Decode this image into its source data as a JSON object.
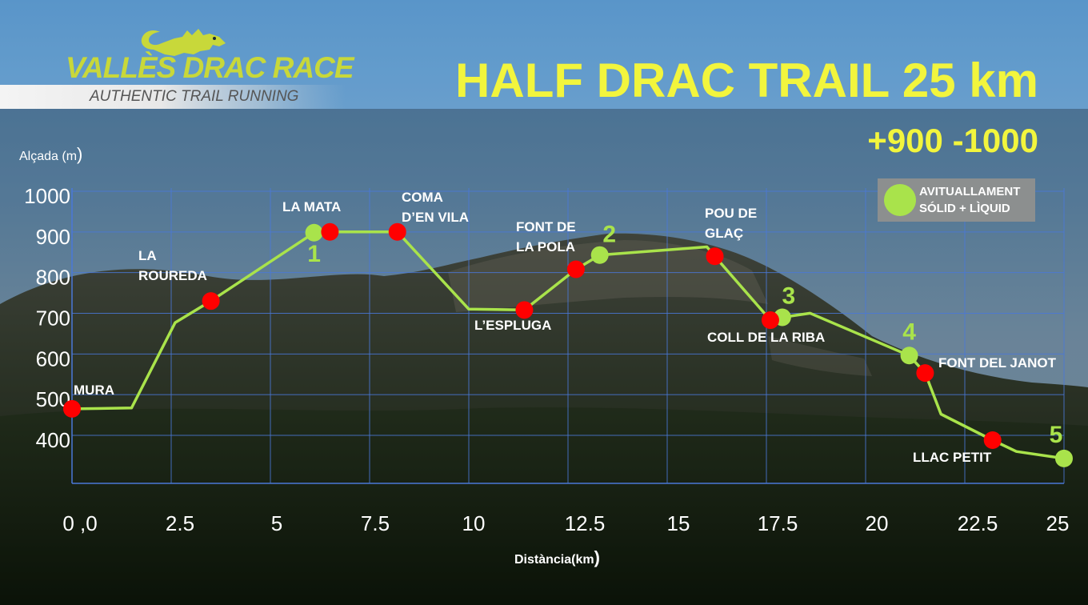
{
  "brand": {
    "name": "VALLÈS DRAC RACE",
    "tagline": "AUTHENTIC TRAIL RUNNING"
  },
  "race": {
    "title": "HALF DRAC TRAIL 25 km",
    "elevation": "+900  -1000"
  },
  "legend": {
    "label_line1": "AVITUALLAMENT",
    "label_line2": "SÓLID + LÌQUID"
  },
  "colors": {
    "accent": "#f2f53d",
    "profile_line": "#a9e34b",
    "aid_station": "#a9e34b",
    "waypoint": "#ff0000",
    "grid": "#4a78d8"
  },
  "chart_data": {
    "type": "line",
    "title": "HALF DRAC TRAIL 25 km",
    "ylabel": "Alçada (m",
    "ylabel_paren": ")",
    "xlabel": "Distància(km",
    "xlabel_paren": ")",
    "xlim": [
      0,
      25
    ],
    "ylim": [
      330,
      1000
    ],
    "x_ticks": [
      "0 ,0",
      "2.5",
      "5",
      "7.5",
      "10",
      "12.5",
      "15",
      "17.5",
      "20",
      "22.5",
      "25"
    ],
    "y_ticks": [
      "1000",
      "900",
      "800",
      "700",
      "600",
      "500",
      "400"
    ],
    "profile": [
      {
        "x": 0,
        "y": 477
      },
      {
        "x": 1.5,
        "y": 479
      },
      {
        "x": 2.6,
        "y": 689
      },
      {
        "x": 3.5,
        "y": 742
      },
      {
        "x": 6.1,
        "y": 910
      },
      {
        "x": 6.5,
        "y": 912
      },
      {
        "x": 8.2,
        "y": 912
      },
      {
        "x": 10.0,
        "y": 722
      },
      {
        "x": 11.4,
        "y": 720
      },
      {
        "x": 12.7,
        "y": 820
      },
      {
        "x": 13.3,
        "y": 855
      },
      {
        "x": 16.0,
        "y": 875
      },
      {
        "x": 16.2,
        "y": 852
      },
      {
        "x": 17.6,
        "y": 695
      },
      {
        "x": 17.9,
        "y": 702
      },
      {
        "x": 18.6,
        "y": 712
      },
      {
        "x": 21.1,
        "y": 608
      },
      {
        "x": 21.5,
        "y": 565
      },
      {
        "x": 21.9,
        "y": 464
      },
      {
        "x": 23.2,
        "y": 400
      },
      {
        "x": 23.8,
        "y": 372
      },
      {
        "x": 25,
        "y": 355
      }
    ],
    "waypoints": [
      {
        "name": "MURA",
        "x": 0,
        "y": 477
      },
      {
        "name": "LA ROUREDA",
        "x": 3.5,
        "y": 742
      },
      {
        "name": "LA MATA",
        "x": 6.5,
        "y": 912
      },
      {
        "name": "COMA D’EN VILA",
        "x": 8.2,
        "y": 912
      },
      {
        "name": "L’ESPLUGA",
        "x": 11.4,
        "y": 720
      },
      {
        "name": "FONT DE LA POLA",
        "x": 12.7,
        "y": 820
      },
      {
        "name": "POU DE GLAÇ",
        "x": 16.2,
        "y": 852
      },
      {
        "name": "COLL DE LA RIBA",
        "x": 17.6,
        "y": 695
      },
      {
        "name": "FONT DEL JANOT",
        "x": 21.5,
        "y": 565
      },
      {
        "name": "LLAC PETIT",
        "x": 23.2,
        "y": 400
      }
    ],
    "aid_stations": [
      {
        "number": "1",
        "x": 6.1,
        "y": 910
      },
      {
        "number": "2",
        "x": 13.3,
        "y": 855
      },
      {
        "number": "3",
        "x": 17.9,
        "y": 702
      },
      {
        "number": "4",
        "x": 21.1,
        "y": 608
      },
      {
        "number": "5",
        "x": 25,
        "y": 355
      }
    ]
  }
}
